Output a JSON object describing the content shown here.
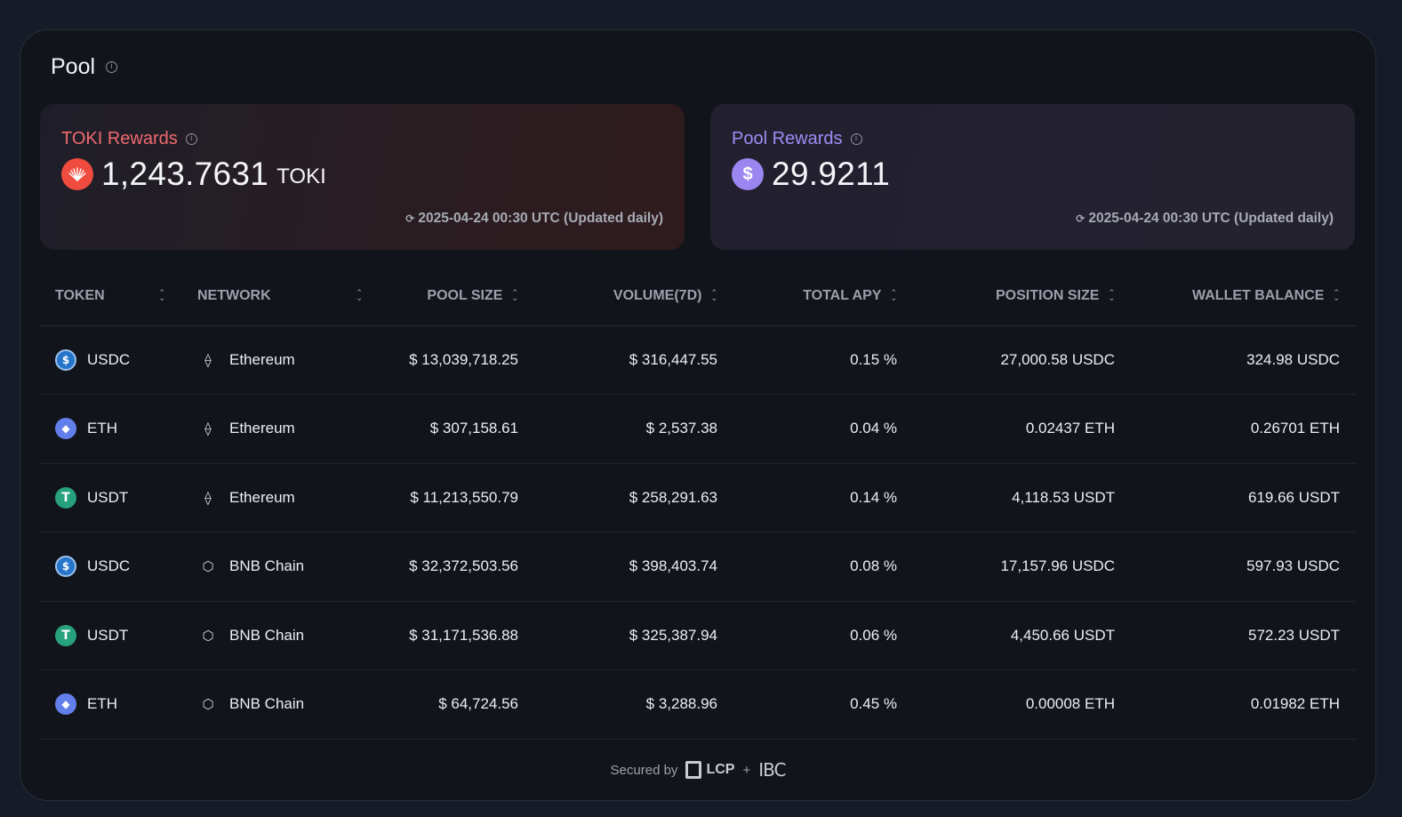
{
  "panel": {
    "title": "Pool"
  },
  "toki_rewards": {
    "label": "TOKI Rewards",
    "value": "1,243.7631",
    "unit": "TOKI",
    "updated": "2025-04-24 00:30 UTC (Updated daily)"
  },
  "pool_rewards": {
    "label": "Pool Rewards",
    "coin_symbol": "$",
    "value": "29.9211",
    "updated": "2025-04-24 00:30 UTC (Updated daily)"
  },
  "table": {
    "headers": [
      "TOKEN",
      "NETWORK",
      "POOL SIZE",
      "VOLUME(7D)",
      "TOTAL APY",
      "POSITION SIZE",
      "WALLET BALANCE"
    ],
    "rows": [
      {
        "token": "USDC",
        "token_icon": "usdc-icon",
        "network": "Ethereum",
        "network_icon": "ethereum-icon",
        "pool_size": "$ 13,039,718.25",
        "volume": "$ 316,447.55",
        "apy": "0.15 %",
        "position": "27,000.58 USDC",
        "wallet": "324.98 USDC"
      },
      {
        "token": "ETH",
        "token_icon": "eth-icon",
        "network": "Ethereum",
        "network_icon": "ethereum-icon",
        "pool_size": "$ 307,158.61",
        "volume": "$ 2,537.38",
        "apy": "0.04 %",
        "position": "0.02437 ETH",
        "wallet": "0.26701 ETH"
      },
      {
        "token": "USDT",
        "token_icon": "usdt-icon",
        "network": "Ethereum",
        "network_icon": "ethereum-icon",
        "pool_size": "$ 11,213,550.79",
        "volume": "$ 258,291.63",
        "apy": "0.14 %",
        "position": "4,118.53 USDT",
        "wallet": "619.66 USDT"
      },
      {
        "token": "USDC",
        "token_icon": "usdc-icon",
        "network": "BNB Chain",
        "network_icon": "bnb-chain-icon",
        "pool_size": "$ 32,372,503.56",
        "volume": "$ 398,403.74",
        "apy": "0.08 %",
        "position": "17,157.96 USDC",
        "wallet": "597.93 USDC"
      },
      {
        "token": "USDT",
        "token_icon": "usdt-icon",
        "network": "BNB Chain",
        "network_icon": "bnb-chain-icon",
        "pool_size": "$ 31,171,536.88",
        "volume": "$ 325,387.94",
        "apy": "0.06 %",
        "position": "4,450.66 USDT",
        "wallet": "572.23 USDT"
      },
      {
        "token": "ETH",
        "token_icon": "eth-icon",
        "network": "BNB Chain",
        "network_icon": "bnb-chain-icon",
        "pool_size": "$ 64,724.56",
        "volume": "$ 3,288.96",
        "apy": "0.45 %",
        "position": "0.00008 ETH",
        "wallet": "0.01982 ETH"
      }
    ]
  },
  "footer": {
    "secured_by": "Secured by",
    "lcp": "LCP",
    "plus": "+",
    "ibc": "IBC"
  },
  "colors": {
    "toki_accent": "#ef6a6f",
    "pool_accent": "#a08cf5",
    "background": "#12141b"
  }
}
